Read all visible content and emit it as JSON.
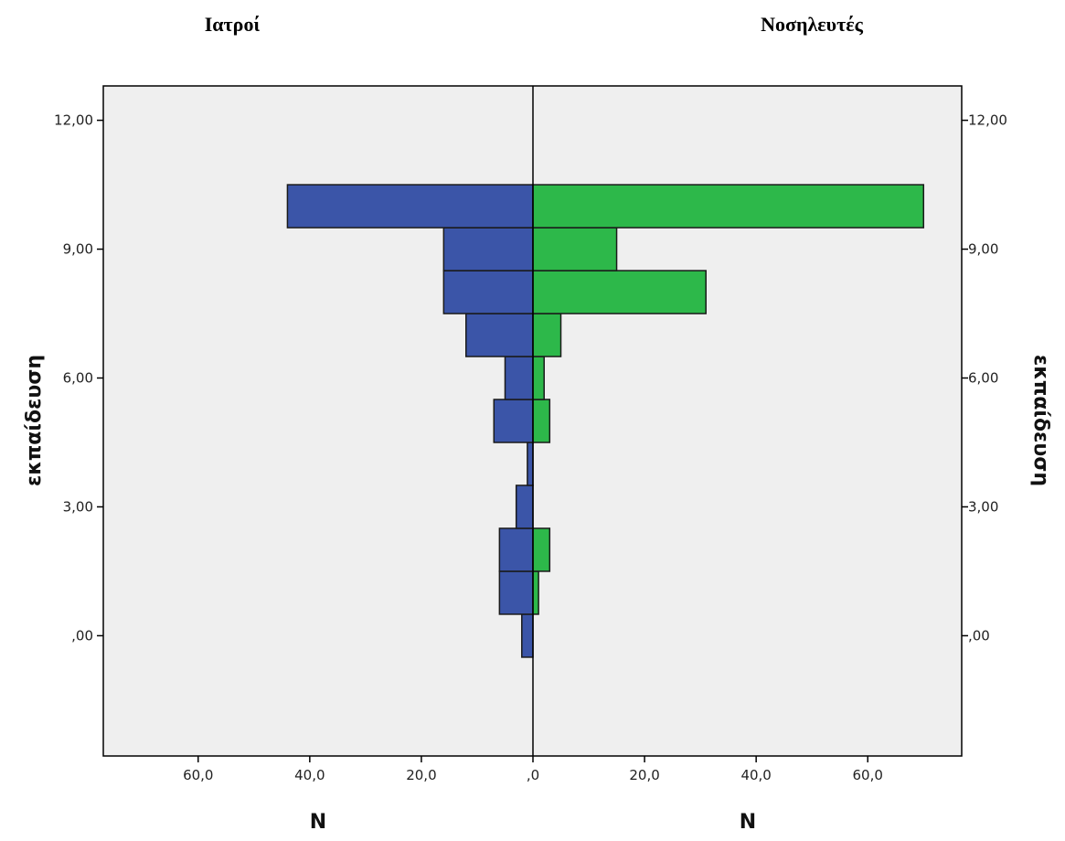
{
  "chart_data": {
    "type": "bar",
    "orientation": "horizontal",
    "layout": "back-to-back",
    "panels": [
      {
        "title": "Ιατροί",
        "side": "left",
        "xlabel": "N",
        "color": "#3b55a8"
      },
      {
        "title": "Νοσηλευτές",
        "side": "right",
        "xlabel": "N",
        "color": "#2db84a"
      }
    ],
    "ylabel": "εκπαίδευση",
    "ylim": [
      -2.8,
      12.8
    ],
    "xlim": [
      0,
      77
    ],
    "y_ticks": [
      0,
      3,
      6,
      9,
      12
    ],
    "y_tick_labels": [
      ",00",
      "3,00",
      "6,00",
      "9,00",
      "12,00"
    ],
    "x_ticks": [
      0,
      20,
      40,
      60
    ],
    "x_tick_labels": [
      ",0",
      "20,0",
      "40,0",
      "60,0"
    ],
    "bin_width": 1,
    "bins": [
      -0.5,
      0.5,
      1.5,
      2.5,
      3.5,
      4.5,
      5.5,
      6.5,
      7.5,
      8.5,
      9.5,
      10.5
    ],
    "series": [
      {
        "name": "Ιατροί",
        "values": [
          2,
          6,
          6,
          3,
          1,
          7,
          5,
          12,
          16,
          16,
          44,
          0
        ]
      },
      {
        "name": "Νοσηλευτές",
        "values": [
          0,
          1,
          3,
          0,
          0,
          3,
          2,
          5,
          31,
          15,
          70,
          0
        ]
      }
    ],
    "grid": false,
    "background": "#efefef"
  }
}
